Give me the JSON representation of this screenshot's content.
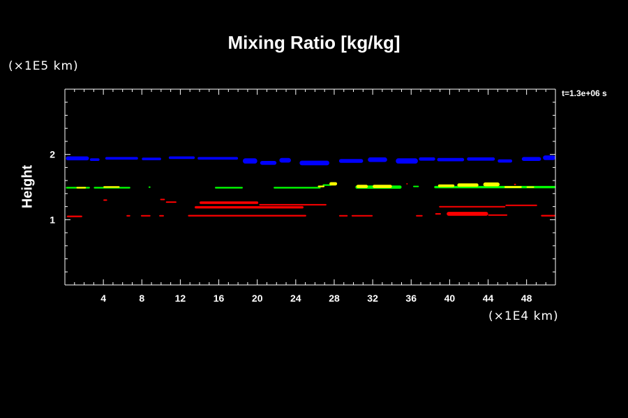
{
  "chart_data": {
    "type": "scatter",
    "title": "Mixing Ratio [kg/kg]",
    "xlabel": "",
    "ylabel": "Height",
    "x_unit_label": "(×1E4 km)",
    "y_unit_label": "(×1E5 km)",
    "time_label": "t=1.3e+06 s",
    "xlim": [
      0,
      51
    ],
    "ylim": [
      0,
      3
    ],
    "x_ticks": [
      4,
      8,
      12,
      16,
      20,
      24,
      28,
      32,
      36,
      40,
      44,
      48
    ],
    "y_ticks": [
      1,
      2
    ],
    "grid": false,
    "colors": {
      "blue": "#0000ff",
      "green": "#00ff00",
      "yellow": "#ffff00",
      "red": "#ff0000",
      "background": "#000000",
      "axes": "#ffffff"
    },
    "series": [
      {
        "color": "#0000ff",
        "segments": [
          [
            0.1,
            2.5,
            1.94,
            0.06
          ],
          [
            2.6,
            3.6,
            1.92,
            0.04
          ],
          [
            4.2,
            7.6,
            1.94,
            0.04
          ],
          [
            8.0,
            10.0,
            1.93,
            0.04
          ],
          [
            10.8,
            13.5,
            1.95,
            0.04
          ],
          [
            13.8,
            18.0,
            1.94,
            0.04
          ],
          [
            18.5,
            20.0,
            1.9,
            0.08
          ],
          [
            20.3,
            22.0,
            1.87,
            0.06
          ],
          [
            22.3,
            23.5,
            1.91,
            0.07
          ],
          [
            24.4,
            27.5,
            1.87,
            0.07
          ],
          [
            28.5,
            31.0,
            1.9,
            0.06
          ],
          [
            31.5,
            33.5,
            1.92,
            0.07
          ],
          [
            34.4,
            36.7,
            1.9,
            0.08
          ],
          [
            36.8,
            38.5,
            1.93,
            0.05
          ],
          [
            38.7,
            41.5,
            1.92,
            0.05
          ],
          [
            41.8,
            44.7,
            1.93,
            0.05
          ],
          [
            45.0,
            46.5,
            1.9,
            0.05
          ],
          [
            47.5,
            49.5,
            1.93,
            0.06
          ],
          [
            49.7,
            51.0,
            1.95,
            0.07
          ]
        ]
      },
      {
        "color": "#00ff00",
        "segments": [
          [
            0.1,
            2.6,
            1.49,
            0.025
          ],
          [
            3.0,
            6.8,
            1.49,
            0.025
          ],
          [
            8.7,
            8.9,
            1.5,
            0.02
          ],
          [
            15.6,
            18.5,
            1.49,
            0.025
          ],
          [
            21.7,
            26.6,
            1.49,
            0.025
          ],
          [
            26.8,
            27.7,
            1.53,
            0.025
          ],
          [
            30.2,
            35.0,
            1.5,
            0.05
          ],
          [
            36.2,
            36.8,
            1.51,
            0.02
          ],
          [
            38.4,
            51.0,
            1.5,
            0.035
          ]
        ]
      },
      {
        "color": "#ffff00",
        "segments": [
          [
            1.2,
            2.2,
            1.49,
            0.025
          ],
          [
            4.0,
            5.7,
            1.5,
            0.025
          ],
          [
            26.3,
            27.0,
            1.51,
            0.025
          ],
          [
            27.5,
            28.3,
            1.55,
            0.05
          ],
          [
            30.3,
            31.5,
            1.51,
            0.05
          ],
          [
            32.0,
            34.0,
            1.51,
            0.05
          ],
          [
            38.8,
            40.5,
            1.52,
            0.04
          ],
          [
            40.8,
            43.0,
            1.53,
            0.05
          ],
          [
            43.5,
            45.2,
            1.54,
            0.06
          ],
          [
            45.7,
            47.5,
            1.5,
            0.03
          ],
          [
            48.0,
            48.8,
            1.5,
            0.02
          ]
        ]
      },
      {
        "color": "#ff0000",
        "segments": [
          [
            0.2,
            1.8,
            1.05,
            0.025
          ],
          [
            4.0,
            4.4,
            1.3,
            0.02
          ],
          [
            6.4,
            6.8,
            1.06,
            0.02
          ],
          [
            7.9,
            8.9,
            1.06,
            0.02
          ],
          [
            9.8,
            10.3,
            1.06,
            0.02
          ],
          [
            9.9,
            10.4,
            1.31,
            0.02
          ],
          [
            10.5,
            11.6,
            1.27,
            0.02
          ],
          [
            12.8,
            25.1,
            1.06,
            0.025
          ],
          [
            14.0,
            20.1,
            1.26,
            0.04
          ],
          [
            13.5,
            24.8,
            1.19,
            0.035
          ],
          [
            20.2,
            27.2,
            1.23,
            0.02
          ],
          [
            28.5,
            29.4,
            1.06,
            0.02
          ],
          [
            29.8,
            32.0,
            1.06,
            0.02
          ],
          [
            36.5,
            37.2,
            1.06,
            0.02
          ],
          [
            38.5,
            39.1,
            1.09,
            0.02
          ],
          [
            38.9,
            45.8,
            1.2,
            0.02
          ],
          [
            39.7,
            44.0,
            1.09,
            0.06
          ],
          [
            44.0,
            46.0,
            1.07,
            0.02
          ],
          [
            45.8,
            49.1,
            1.22,
            0.02
          ],
          [
            49.5,
            51.0,
            1.06,
            0.025
          ],
          [
            35.5,
            35.6,
            1.55,
            0.02
          ],
          [
            46.7,
            46.9,
            1.54,
            0.02
          ]
        ]
      }
    ]
  }
}
